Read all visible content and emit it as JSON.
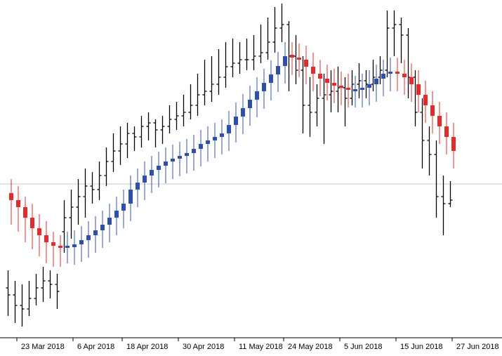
{
  "chart_data": {
    "type": "candlestick",
    "categories": [
      null,
      "23 Mar 2018",
      null,
      null,
      null,
      null,
      null,
      null,
      null,
      "6 Apr 2018",
      null,
      null,
      null,
      null,
      null,
      null,
      "18 Apr 2018",
      null,
      null,
      null,
      null,
      null,
      null,
      null,
      "30 Apr 2018",
      null,
      null,
      null,
      null,
      null,
      null,
      null,
      "11 May 2018",
      null,
      null,
      null,
      null,
      null,
      null,
      "24 May 2018",
      null,
      null,
      null,
      null,
      null,
      null,
      null,
      "5 Jun 2018",
      null,
      null,
      null,
      null,
      null,
      null,
      null,
      "15 Jun 2018",
      null,
      null,
      null,
      null,
      null,
      null,
      null,
      "27 Jun 2018"
    ],
    "ylim": [
      0,
      480
    ],
    "reference_line": {
      "value": 218,
      "color": "#c8c8c8"
    },
    "bars": {
      "color": "#000000",
      "values": [
        [
          70,
          95,
          30,
          60
        ],
        [
          60,
          80,
          20,
          45
        ],
        [
          45,
          75,
          15,
          40
        ],
        [
          40,
          80,
          30,
          55
        ],
        [
          55,
          90,
          45,
          70
        ],
        [
          70,
          100,
          50,
          80
        ],
        [
          80,
          95,
          55,
          75
        ],
        [
          75,
          90,
          40,
          65
        ],
        [
          150,
          195,
          120,
          170
        ],
        [
          170,
          210,
          140,
          185
        ],
        [
          185,
          225,
          160,
          200
        ],
        [
          200,
          240,
          170,
          215
        ],
        [
          215,
          235,
          190,
          210
        ],
        [
          210,
          250,
          195,
          230
        ],
        [
          230,
          270,
          215,
          250
        ],
        [
          250,
          290,
          235,
          265
        ],
        [
          265,
          300,
          245,
          275
        ],
        [
          275,
          305,
          255,
          290
        ],
        [
          290,
          300,
          265,
          285
        ],
        [
          285,
          315,
          270,
          300
        ],
        [
          300,
          320,
          280,
          305
        ],
        [
          305,
          310,
          270,
          295
        ],
        [
          295,
          315,
          275,
          300
        ],
        [
          300,
          330,
          290,
          310
        ],
        [
          310,
          335,
          295,
          315
        ],
        [
          315,
          345,
          300,
          320
        ],
        [
          320,
          360,
          310,
          330
        ],
        [
          330,
          375,
          315,
          345
        ],
        [
          345,
          395,
          330,
          350
        ],
        [
          350,
          400,
          335,
          360
        ],
        [
          360,
          410,
          345,
          370
        ],
        [
          370,
          420,
          355,
          385
        ],
        [
          385,
          425,
          370,
          390
        ],
        [
          390,
          420,
          375,
          395
        ],
        [
          395,
          425,
          380,
          395
        ],
        [
          395,
          430,
          380,
          400
        ],
        [
          400,
          445,
          390,
          405
        ],
        [
          405,
          455,
          395,
          420
        ],
        [
          420,
          470,
          405,
          440
        ],
        [
          440,
          475,
          420,
          445
        ],
        [
          445,
          450,
          350,
          400
        ],
        [
          400,
          430,
          360,
          380
        ],
        [
          380,
          400,
          290,
          330
        ],
        [
          330,
          370,
          285,
          320
        ],
        [
          320,
          360,
          300,
          340
        ],
        [
          340,
          375,
          275,
          345
        ],
        [
          345,
          380,
          320,
          350
        ],
        [
          350,
          385,
          320,
          355
        ],
        [
          355,
          370,
          300,
          340
        ],
        [
          340,
          380,
          330,
          360
        ],
        [
          360,
          390,
          340,
          365
        ],
        [
          365,
          380,
          340,
          360
        ],
        [
          360,
          395,
          350,
          370
        ],
        [
          370,
          400,
          360,
          380
        ],
        [
          380,
          465,
          370,
          440
        ],
        [
          440,
          465,
          400,
          445
        ],
        [
          445,
          455,
          390,
          430
        ],
        [
          430,
          440,
          340,
          370
        ],
        [
          370,
          380,
          300,
          320
        ],
        [
          320,
          340,
          240,
          280
        ],
        [
          280,
          300,
          230,
          260
        ],
        [
          260,
          280,
          170,
          200
        ],
        [
          200,
          230,
          145,
          190
        ],
        [
          190,
          222,
          185,
          195
        ]
      ]
    },
    "candles": {
      "up_color": "#2f4fae",
      "down_color": "#e32b2b",
      "values": [
        [
          205,
          225,
          160,
          195
        ],
        [
          195,
          215,
          150,
          185
        ],
        [
          185,
          200,
          135,
          170
        ],
        [
          170,
          190,
          125,
          155
        ],
        [
          155,
          175,
          115,
          145
        ],
        [
          145,
          165,
          105,
          135
        ],
        [
          135,
          150,
          100,
          130
        ],
        [
          130,
          145,
          100,
          128
        ],
        [
          127,
          150,
          105,
          130
        ],
        [
          128,
          152,
          103,
          132
        ],
        [
          132,
          158,
          107,
          138
        ],
        [
          138,
          165,
          113,
          145
        ],
        [
          145,
          172,
          120,
          152
        ],
        [
          152,
          180,
          127,
          160
        ],
        [
          160,
          190,
          135,
          170
        ],
        [
          170,
          200,
          145,
          180
        ],
        [
          180,
          210,
          155,
          190
        ],
        [
          190,
          230,
          165,
          210
        ],
        [
          210,
          240,
          185,
          220
        ],
        [
          220,
          250,
          195,
          230
        ],
        [
          230,
          258,
          205,
          238
        ],
        [
          238,
          264,
          213,
          244
        ],
        [
          244,
          270,
          219,
          250
        ],
        [
          250,
          274,
          225,
          254
        ],
        [
          254,
          278,
          229,
          258
        ],
        [
          258,
          282,
          233,
          262
        ],
        [
          262,
          288,
          237,
          268
        ],
        [
          268,
          295,
          243,
          275
        ],
        [
          275,
          300,
          250,
          280
        ],
        [
          280,
          305,
          255,
          285
        ],
        [
          285,
          310,
          260,
          290
        ],
        [
          290,
          322,
          265,
          302
        ],
        [
          302,
          334,
          277,
          314
        ],
        [
          314,
          346,
          289,
          326
        ],
        [
          326,
          358,
          301,
          338
        ],
        [
          338,
          370,
          313,
          350
        ],
        [
          350,
          382,
          325,
          362
        ],
        [
          362,
          394,
          337,
          374
        ],
        [
          374,
          406,
          349,
          386
        ],
        [
          386,
          420,
          361,
          400
        ],
        [
          402,
          420,
          373,
          398
        ],
        [
          398,
          418,
          370,
          395
        ],
        [
          395,
          415,
          360,
          385
        ],
        [
          385,
          405,
          350,
          375
        ],
        [
          375,
          395,
          343,
          368
        ],
        [
          368,
          388,
          337,
          362
        ],
        [
          362,
          382,
          333,
          358
        ],
        [
          358,
          378,
          330,
          355
        ],
        [
          355,
          375,
          327,
          352
        ],
        [
          351,
          372,
          327,
          353
        ],
        [
          352,
          375,
          327,
          355
        ],
        [
          355,
          380,
          330,
          360
        ],
        [
          360,
          388,
          335,
          368
        ],
        [
          368,
          395,
          343,
          375
        ],
        [
          375,
          398,
          350,
          378
        ],
        [
          378,
          398,
          350,
          375
        ],
        [
          375,
          395,
          345,
          370
        ],
        [
          370,
          390,
          335,
          360
        ],
        [
          360,
          380,
          320,
          345
        ],
        [
          345,
          365,
          305,
          330
        ],
        [
          330,
          350,
          290,
          315
        ],
        [
          315,
          335,
          275,
          300
        ],
        [
          300,
          320,
          260,
          285
        ],
        [
          285,
          305,
          240,
          265
        ]
      ]
    }
  }
}
